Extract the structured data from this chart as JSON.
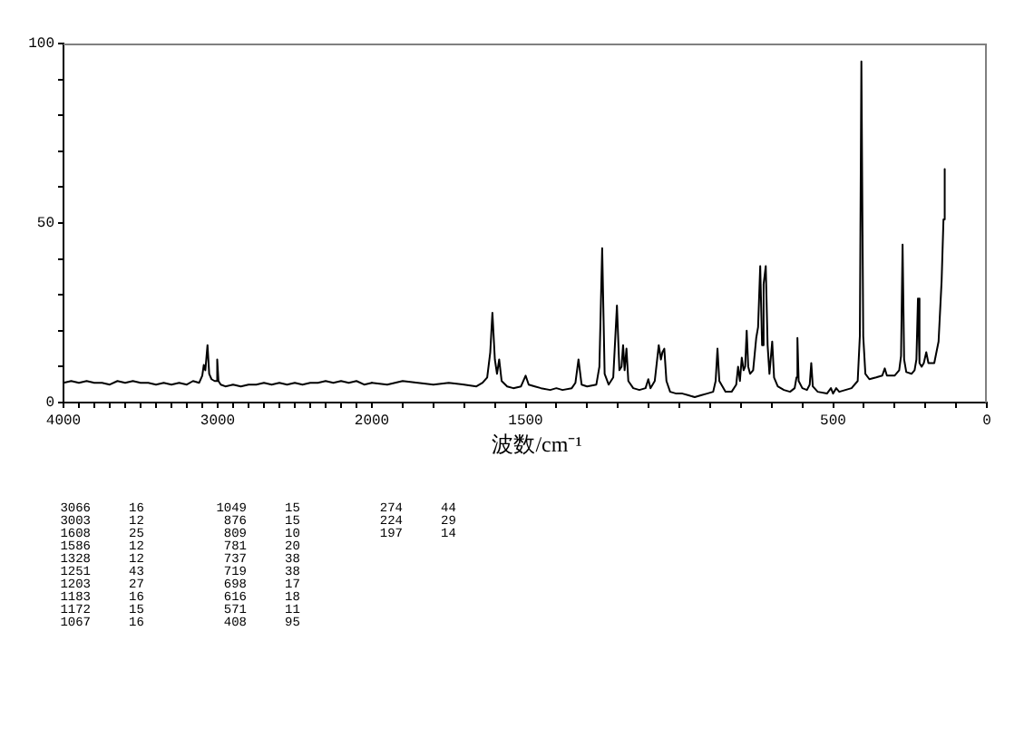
{
  "chart_data": [
    {
      "type": "line",
      "color": "#000000",
      "x": [
        4000,
        3950,
        3900,
        3850,
        3800,
        3750,
        3700,
        3650,
        3600,
        3550,
        3500,
        3450,
        3400,
        3350,
        3300,
        3250,
        3200,
        3160,
        3120,
        3100,
        3090,
        3080,
        3066,
        3055,
        3040,
        3020,
        3010,
        3003,
        2995,
        2980,
        2950,
        2900,
        2850,
        2800,
        2750,
        2700,
        2650,
        2600,
        2550,
        2500,
        2450,
        2400,
        2350,
        2300,
        2250,
        2200,
        2150,
        2100,
        2050,
        2000
      ],
      "values": [
        5.5,
        6,
        5.5,
        6,
        5.5,
        5.5,
        5,
        6,
        5.5,
        6,
        5.5,
        5.5,
        5,
        5.5,
        5,
        5.5,
        5,
        6,
        5.5,
        7.5,
        10.5,
        9,
        16,
        8,
        6.5,
        6,
        6,
        12,
        6,
        5,
        4.5,
        5,
        4.5,
        5,
        5,
        5.5,
        5,
        5.5,
        5,
        5.5,
        5,
        5.5,
        5.5,
        6,
        5.5,
        6,
        5.5,
        6,
        5,
        5.5
      ],
      "xlim": [
        4000,
        2000
      ],
      "xticks": [
        4000,
        {
          "value": 3900,
          "label": null
        },
        {
          "value": 3800,
          "label": null
        },
        {
          "value": 3700,
          "label": null
        },
        {
          "value": 3600,
          "label": null
        },
        {
          "value": 3500,
          "label": null
        },
        {
          "value": 3400,
          "label": null
        },
        {
          "value": 3300,
          "label": null
        },
        {
          "value": 3200,
          "label": null
        },
        {
          "value": 3100,
          "label": null
        },
        3000,
        {
          "value": 2900,
          "label": null
        },
        {
          "value": 2800,
          "label": null
        },
        {
          "value": 2700,
          "label": null
        },
        {
          "value": 2600,
          "label": null
        },
        {
          "value": 2500,
          "label": null
        },
        {
          "value": 2400,
          "label": null
        },
        {
          "value": 2300,
          "label": null
        },
        {
          "value": 2200,
          "label": null
        },
        {
          "value": 2100,
          "label": null
        },
        2000
      ],
      "ylim": [
        0,
        100
      ],
      "yticks": [
        0,
        {
          "value": 10,
          "label": null
        },
        {
          "value": 20,
          "label": null
        },
        {
          "value": 30,
          "label": null
        },
        {
          "value": 40,
          "label": null
        },
        50,
        {
          "value": 60,
          "label": null
        },
        {
          "value": 70,
          "label": null
        },
        {
          "value": 80,
          "label": null
        },
        {
          "value": 90,
          "label": null
        },
        100
      ],
      "annotations": [
        "3066",
        "16",
        "3003",
        "12"
      ]
    },
    {
      "type": "line",
      "color": "#000000",
      "xlabel": "波数/cm⁻¹",
      "x": [
        2000,
        1950,
        1900,
        1850,
        1800,
        1750,
        1700,
        1660,
        1640,
        1625,
        1615,
        1608,
        1600,
        1593,
        1586,
        1578,
        1560,
        1540,
        1515,
        1500,
        1490,
        1470,
        1450,
        1420,
        1400,
        1380,
        1350,
        1338,
        1328,
        1318,
        1300,
        1270,
        1260,
        1251,
        1243,
        1230,
        1215,
        1203,
        1195,
        1188,
        1183,
        1178,
        1172,
        1166,
        1150,
        1130,
        1110,
        1101,
        1094,
        1080,
        1067,
        1060,
        1055,
        1049,
        1042,
        1030,
        1010,
        990,
        970,
        950,
        930,
        910,
        890,
        882,
        876,
        870,
        850,
        830,
        815,
        809,
        803,
        797,
        791,
        786,
        781,
        776,
        770,
        760,
        750,
        744,
        737,
        731,
        726,
        719,
        713,
        707,
        698,
        692,
        680,
        660,
        640,
        625,
        619,
        616,
        612,
        600,
        585,
        576,
        571,
        566,
        550,
        520,
        507,
        500,
        490,
        480,
        460,
        440,
        420,
        413,
        408,
        402,
        395,
        382,
        360,
        340,
        332,
        325,
        300,
        285,
        279,
        274,
        269,
        262,
        245,
        235,
        229,
        224,
        219,
        212,
        205,
        197,
        190,
        180,
        171,
        157,
        147,
        141,
        137
      ],
      "values": [
        5.5,
        5,
        6,
        5.5,
        5,
        5.5,
        5,
        4.5,
        5.5,
        7,
        14,
        25,
        12,
        8,
        12,
        6,
        4.5,
        4,
        4.5,
        7.5,
        5,
        4.5,
        4,
        3.5,
        4,
        3.5,
        4,
        5.5,
        12,
        5,
        4.5,
        5,
        10,
        43,
        8,
        5,
        7,
        27,
        9,
        10,
        16,
        9,
        15,
        6,
        4,
        3.5,
        4,
        6.5,
        4,
        6,
        16,
        12,
        14,
        15,
        6,
        3,
        2.5,
        2.5,
        2,
        1.5,
        2,
        2.5,
        3,
        6,
        15,
        6,
        3,
        3,
        5,
        10,
        6,
        12.5,
        9,
        10,
        20,
        10,
        8,
        9,
        18,
        21,
        38,
        16,
        33,
        38,
        16,
        8,
        17,
        7,
        4.5,
        3.5,
        3,
        4,
        7,
        18,
        6,
        4,
        3.5,
        5,
        11,
        4.5,
        3,
        2.5,
        4,
        2.5,
        4,
        3,
        3.5,
        4,
        6,
        18.5,
        95,
        18.5,
        8,
        6.5,
        7,
        7.5,
        9.5,
        7.5,
        7.5,
        9,
        13,
        44,
        12,
        8.5,
        8,
        9,
        12,
        29,
        11,
        10,
        11,
        14,
        11,
        11,
        11,
        17,
        34,
        51,
        65
      ],
      "xlim": [
        2000,
        0
      ],
      "xticks": [
        {
          "value": 1900,
          "label": null
        },
        {
          "value": 1800,
          "label": null
        },
        {
          "value": 1700,
          "label": null
        },
        {
          "value": 1600,
          "label": null
        },
        1500,
        {
          "value": 1400,
          "label": null
        },
        {
          "value": 1300,
          "label": null
        },
        {
          "value": 1200,
          "label": null
        },
        {
          "value": 1100,
          "label": null
        },
        {
          "value": 1000,
          "label": null
        },
        {
          "value": 900,
          "label": null
        },
        {
          "value": 800,
          "label": null
        },
        {
          "value": 700,
          "label": null
        },
        {
          "value": 600,
          "label": null
        },
        500,
        {
          "value": 400,
          "label": null
        },
        {
          "value": 300,
          "label": null
        },
        {
          "value": 200,
          "label": null
        },
        {
          "value": 100,
          "label": null
        },
        0
      ],
      "ylim": [
        0,
        100
      ],
      "tick_labels": "x",
      "annotations": [
        "1608",
        "25",
        "1586",
        "12",
        "1328",
        "12",
        "1251",
        "43",
        "1203",
        "27",
        "1183",
        "16",
        "1172",
        "15",
        "1067",
        "16",
        "1049",
        "15",
        "876",
        "15",
        "809",
        "10",
        "781",
        "20",
        "737",
        "38",
        "719",
        "38",
        "698",
        "17",
        "616",
        "18",
        "571",
        "11",
        "408",
        "95",
        "274",
        "44",
        "224",
        "29",
        "197",
        "14"
      ]
    }
  ]
}
